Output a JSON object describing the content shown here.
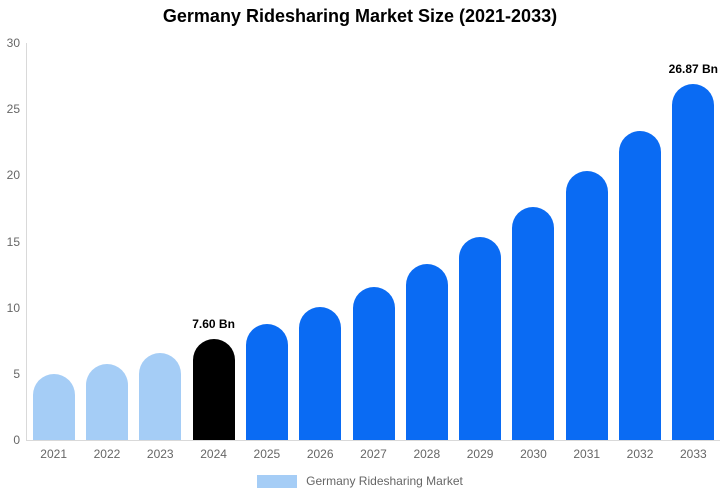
{
  "title": "Germany Ridesharing Market Size (2021-2033)",
  "legend": {
    "label": "Germany Ridesharing Market",
    "swatch_color": "#a5cdf6"
  },
  "colors": {
    "bar_light": "#a5cdf6",
    "bar_primary": "#0a6bf3",
    "bar_highlight": "#000000",
    "axis_line": "#d9d9d9",
    "tick_text": "#666666",
    "title_text": "#000000",
    "label_text": "#000000"
  },
  "chart_data": {
    "type": "bar",
    "title": "Germany Ridesharing Market Size (2021-2033)",
    "unit": "Bn",
    "categories": [
      "2021",
      "2022",
      "2023",
      "2024",
      "2025",
      "2026",
      "2027",
      "2028",
      "2029",
      "2030",
      "2031",
      "2032",
      "2033"
    ],
    "values": [
      4.99,
      5.74,
      6.61,
      7.6,
      8.74,
      10.06,
      11.58,
      13.32,
      15.33,
      17.64,
      20.29,
      23.35,
      26.87
    ],
    "bar_color_keys": [
      "light",
      "light",
      "light",
      "highlight",
      "primary",
      "primary",
      "primary",
      "primary",
      "primary",
      "primary",
      "primary",
      "primary",
      "primary"
    ],
    "ylim": [
      0,
      30
    ],
    "yticks": [
      0,
      5,
      10,
      15,
      20,
      25,
      30
    ],
    "grid": false,
    "legend_position": "bottom",
    "data_labels": [
      {
        "category": "2024",
        "text": "7.60 Bn"
      },
      {
        "category": "2033",
        "text": "26.87 Bn"
      }
    ]
  }
}
